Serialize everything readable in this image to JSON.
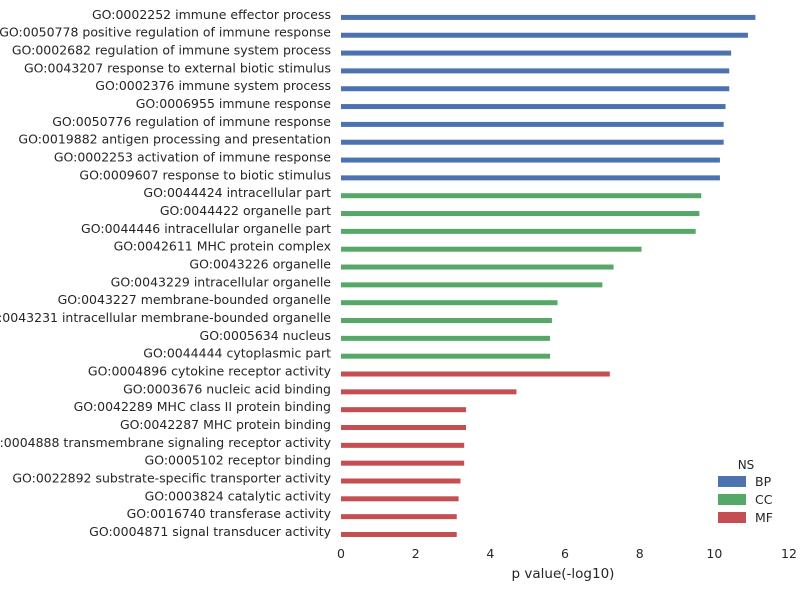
{
  "chart_data": {
    "type": "bar",
    "orientation": "horizontal",
    "xlabel": "p value(-log10)",
    "ylabel": "",
    "xlim": [
      0,
      12
    ],
    "xticks": [
      "0",
      "2",
      "4",
      "6",
      "8",
      "10",
      "12"
    ],
    "grid": false,
    "legend": {
      "title": "NS",
      "placement": "bottom-right",
      "entries": [
        {
          "name": "BP",
          "color": "#4C72B0"
        },
        {
          "name": "CC",
          "color": "#55A868"
        },
        {
          "name": "MF",
          "color": "#C44E52"
        }
      ]
    },
    "categories": [
      "GO:0002252 immune effector process",
      "GO:0050778 positive regulation of immune response",
      "GO:0002682 regulation of immune system process",
      "GO:0043207 response to external biotic stimulus",
      "GO:0002376 immune system process",
      "GO:0006955 immune response",
      "GO:0050776 regulation of immune response",
      "GO:0019882 antigen processing and presentation",
      "GO:0002253 activation of immune response",
      "GO:0009607 response to biotic stimulus",
      "GO:0044424 intracellular part",
      "GO:0044422 organelle part",
      "GO:0044446 intracellular organelle part",
      "GO:0042611 MHC protein complex",
      "GO:0043226 organelle",
      "GO:0043229 intracellular organelle",
      "GO:0043227 membrane-bounded organelle",
      "GO:0043231 intracellular membrane-bounded organelle",
      "GO:0005634 nucleus",
      "GO:0044444 cytoplasmic part",
      "GO:0004896 cytokine receptor activity",
      "GO:0003676 nucleic acid binding",
      "GO:0042289 MHC class II protein binding",
      "GO:0042287 MHC protein binding",
      "GO:0004888 transmembrane signaling receptor activity",
      "GO:0005102 receptor binding",
      "GO:0022892 substrate-specific transporter activity",
      "GO:0003824 catalytic activity",
      "GO:0016740 transferase activity",
      "GO:0004871 signal transducer activity"
    ],
    "groups": [
      "BP",
      "BP",
      "BP",
      "BP",
      "BP",
      "BP",
      "BP",
      "BP",
      "BP",
      "BP",
      "CC",
      "CC",
      "CC",
      "CC",
      "CC",
      "CC",
      "CC",
      "CC",
      "CC",
      "CC",
      "MF",
      "MF",
      "MF",
      "MF",
      "MF",
      "MF",
      "MF",
      "MF",
      "MF",
      "MF"
    ],
    "values": [
      11.1,
      10.9,
      10.45,
      10.4,
      10.4,
      10.3,
      10.25,
      10.25,
      10.15,
      10.15,
      9.65,
      9.6,
      9.5,
      8.05,
      7.3,
      7.0,
      5.8,
      5.65,
      5.6,
      5.6,
      7.2,
      4.7,
      3.35,
      3.35,
      3.3,
      3.3,
      3.2,
      3.15,
      3.1,
      3.1
    ]
  }
}
